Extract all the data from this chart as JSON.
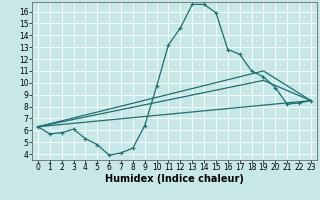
{
  "xlabel": "Humidex (Indice chaleur)",
  "bg_color": "#c8e8e8",
  "grid_color": "#ffffff",
  "line_color": "#1a7070",
  "xlim": [
    -0.5,
    23.5
  ],
  "ylim": [
    3.5,
    16.8
  ],
  "xticks": [
    0,
    1,
    2,
    3,
    4,
    5,
    6,
    7,
    8,
    9,
    10,
    11,
    12,
    13,
    14,
    15,
    16,
    17,
    18,
    19,
    20,
    21,
    22,
    23
  ],
  "yticks": [
    4,
    5,
    6,
    7,
    8,
    9,
    10,
    11,
    12,
    13,
    14,
    15,
    16
  ],
  "line1_x": [
    0,
    1,
    2,
    3,
    4,
    5,
    6,
    7,
    8,
    9,
    10,
    11,
    12,
    13,
    14,
    15,
    16,
    17,
    18,
    19,
    20,
    21,
    22,
    23
  ],
  "line1_y": [
    6.3,
    5.7,
    5.8,
    6.1,
    5.3,
    4.8,
    3.9,
    4.1,
    4.5,
    6.4,
    9.7,
    13.2,
    14.6,
    16.6,
    16.6,
    15.9,
    12.8,
    12.4,
    11.0,
    10.5,
    9.6,
    8.2,
    8.3,
    8.5
  ],
  "line2_x": [
    0,
    23
  ],
  "line2_y": [
    6.3,
    8.5
  ],
  "line3_x": [
    0,
    19,
    23
  ],
  "line3_y": [
    6.3,
    11.0,
    8.5
  ],
  "line4_x": [
    0,
    19,
    23
  ],
  "line4_y": [
    6.3,
    10.2,
    8.5
  ],
  "marker": "+",
  "markersize": 3.5,
  "linewidth": 0.9,
  "tick_fontsize": 5.5,
  "xlabel_fontsize": 7,
  "xlabel_bold": true
}
